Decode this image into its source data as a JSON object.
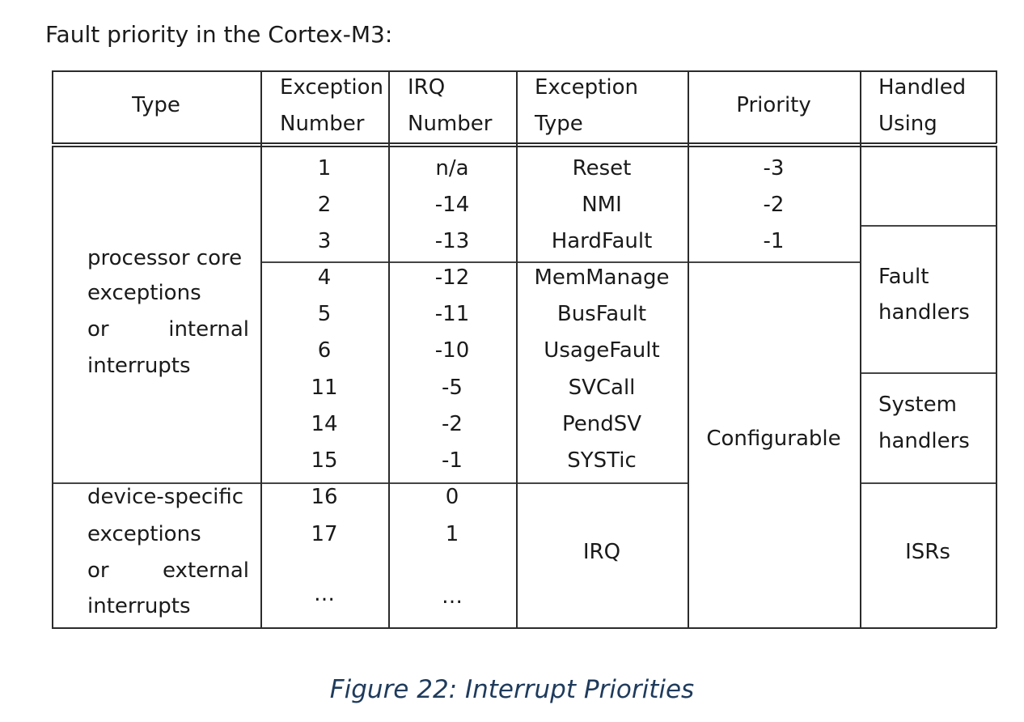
{
  "heading": "Fault priority in the Cortex-M3:",
  "table": {
    "headers": {
      "type": "Type",
      "exception_number": [
        "Exception",
        "Number"
      ],
      "irq_number": [
        "IRQ",
        "Number"
      ],
      "exception_type": [
        "Exception",
        "Type"
      ],
      "priority": "Priority",
      "handled_using": [
        "Handled",
        "Using"
      ]
    },
    "groups": {
      "core": [
        "processor core",
        "exceptions",
        "or",
        "internal",
        "interrupts"
      ],
      "device": [
        "device-specific",
        "exceptions",
        "or",
        "external",
        "interrupts"
      ]
    },
    "exception_numbers": [
      "1",
      "2",
      "3",
      "4",
      "5",
      "6",
      "11",
      "14",
      "15",
      "16",
      "17",
      "…"
    ],
    "irq_numbers": [
      "n/a",
      "-14",
      "-13",
      "-12",
      "-11",
      "-10",
      "-5",
      "-2",
      "-1",
      "0",
      "1",
      "…"
    ],
    "exception_types": [
      "Reset",
      "NMI",
      "HardFault",
      "MemManage",
      "BusFault",
      "UsageFault",
      "SVCall",
      "PendSV",
      "SYSTic",
      "IRQ"
    ],
    "priorities": [
      "-3",
      "-2",
      "-1",
      "Configurable"
    ],
    "handled_using": {
      "fault": [
        "Fault",
        "handlers"
      ],
      "system": [
        "System",
        "handlers"
      ],
      "isr": "ISRs"
    }
  },
  "caption": "Figure 22: Interrupt Priorities"
}
